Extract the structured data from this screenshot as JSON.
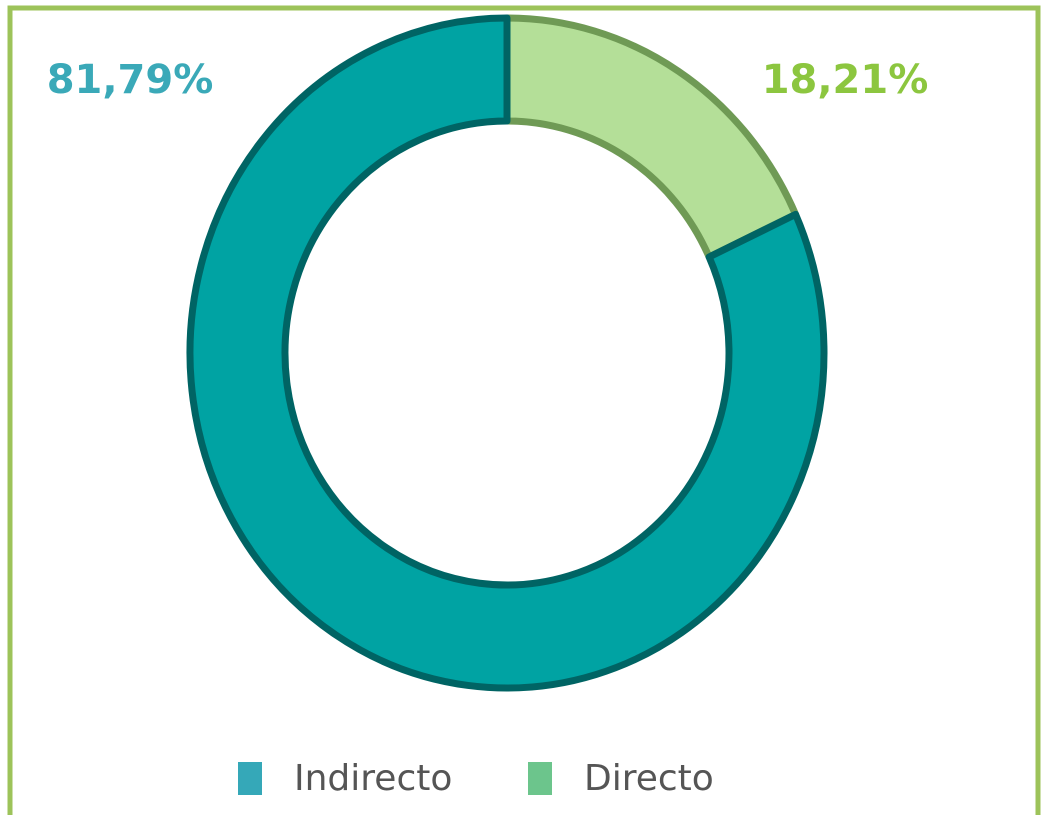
{
  "chart_data": {
    "type": "pie",
    "categories": [
      "Indirecto",
      "Directo"
    ],
    "values": [
      81.79,
      18.21
    ],
    "value_labels": [
      "81,79%",
      "18,21%"
    ],
    "colors": [
      "#00a3a3",
      "#b4df98"
    ],
    "label_colors": [
      "#3aa9b8",
      "#8cc63f"
    ],
    "legend_colors": [
      "#35a8b8",
      "#6cc58c"
    ]
  }
}
